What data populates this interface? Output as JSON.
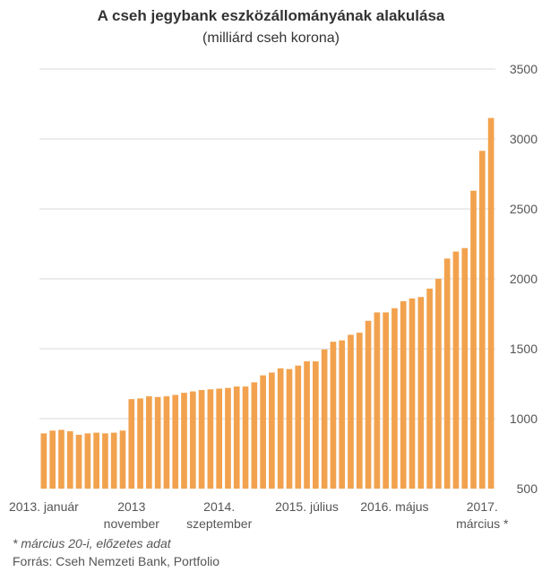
{
  "header": {
    "title": "A cseh jegybank eszközállományának alakulása",
    "subtitle": "(milliárd cseh korona)"
  },
  "footer": {
    "note": "* március 20-i, előzetes adat",
    "source": "Forrás: Cseh Nemzeti Bank, Portfolio"
  },
  "chart_data": {
    "type": "bar",
    "title": "A cseh jegybank eszközállományának alakulása",
    "subtitle": "(milliárd cseh korona)",
    "ylim": [
      500,
      3500
    ],
    "yticks": [
      500,
      1000,
      1500,
      2000,
      2500,
      3000,
      3500
    ],
    "grid": true,
    "y_axis_side": "right",
    "bar_color": "#F2A24E",
    "grid_color": "#d9d9d9",
    "values": [
      895,
      915,
      920,
      910,
      885,
      895,
      900,
      895,
      900,
      915,
      1140,
      1145,
      1160,
      1155,
      1160,
      1170,
      1185,
      1195,
      1205,
      1210,
      1215,
      1220,
      1230,
      1230,
      1260,
      1310,
      1330,
      1360,
      1355,
      1380,
      1410,
      1410,
      1495,
      1550,
      1560,
      1600,
      1615,
      1700,
      1760,
      1760,
      1790,
      1840,
      1860,
      1870,
      1930,
      2000,
      2145,
      2195,
      2220,
      2630,
      2915,
      3150
    ],
    "x_labels": [
      {
        "index": 0,
        "lines": [
          "2013. január"
        ]
      },
      {
        "index": 10,
        "lines": [
          "2013",
          "november"
        ]
      },
      {
        "index": 20,
        "lines": [
          "2014.",
          "szeptember"
        ]
      },
      {
        "index": 30,
        "lines": [
          "2015. július"
        ]
      },
      {
        "index": 40,
        "lines": [
          "2016. május"
        ]
      },
      {
        "index": 50,
        "lines": [
          "2017.",
          "március *"
        ]
      }
    ]
  }
}
